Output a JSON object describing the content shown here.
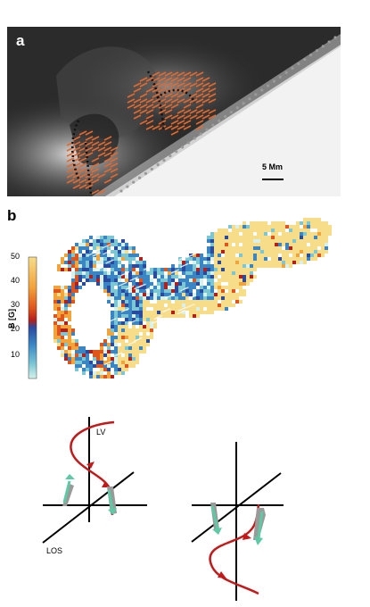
{
  "panel_a": {
    "letter": "a",
    "scale_bar_label": "5 Mm"
  },
  "panel_b": {
    "letter": "b",
    "colorbar": {
      "label": "B [G]",
      "ticks": [
        "50",
        "40",
        "30",
        "20",
        "10"
      ],
      "colors_top_to_bottom": [
        "#f7dc8a",
        "#f2a33a",
        "#e0551c",
        "#b41f1a",
        "#2a4aa0",
        "#3a86c4",
        "#7cc7d4",
        "#d6f2ea"
      ]
    }
  },
  "panel_c": {
    "lv_label": "LV",
    "los_label": "LOS"
  },
  "colors": {
    "field_line": "#c21a1a",
    "arrow": "#5fc9a6",
    "arrow_shadow": "#9a9a9a",
    "hatch": "#e8682a",
    "dotted": "#111111"
  }
}
